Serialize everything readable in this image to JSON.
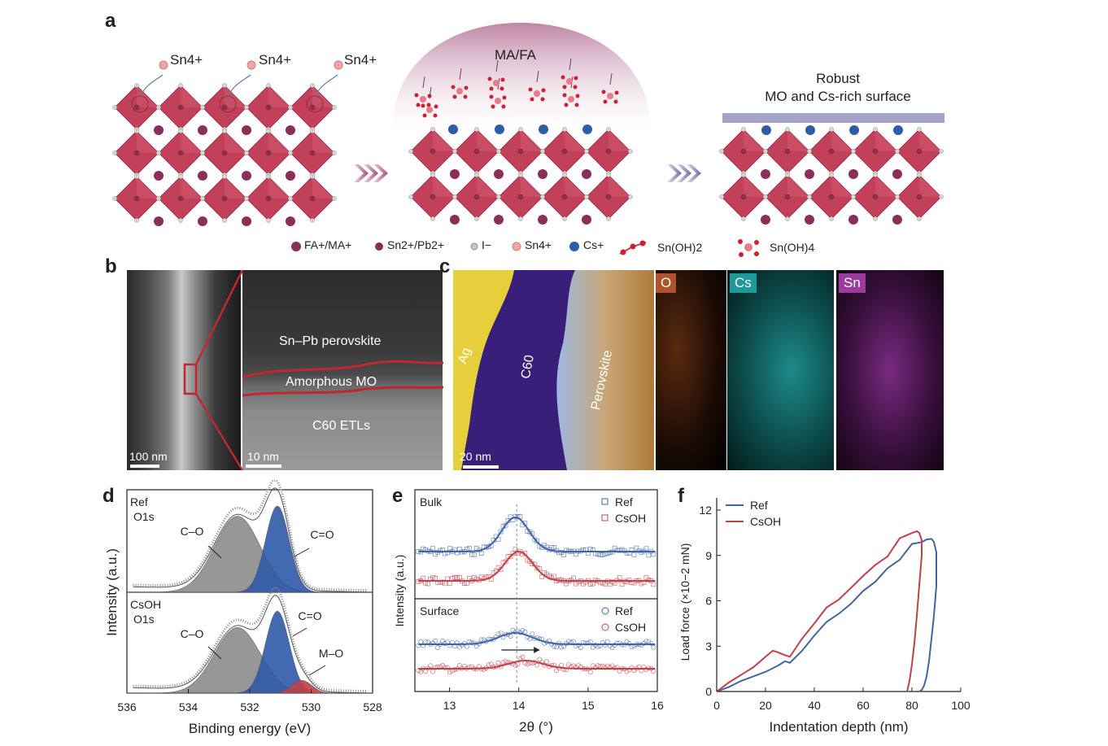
{
  "panels": {
    "a": "a",
    "b": "b",
    "c": "c",
    "d": "d",
    "e": "e",
    "f": "f"
  },
  "panel_a": {
    "sn_labels": [
      "Sn4+",
      "Sn4+",
      "Sn4+"
    ],
    "maf_label": "MA/FA",
    "robust_line1": "Robust",
    "robust_line2": "MO and Cs-rich surface",
    "legend": [
      "FA+/MA+",
      "Sn2+/Pb2+",
      "I−",
      "Sn4+",
      "Cs+",
      "Sn(OH)2",
      "Sn(OH)4"
    ],
    "colors": {
      "octahedron": "#c2405a",
      "fa": "#8b2f5a",
      "snpb": "#8e3040",
      "iodide": "#c8c8c8",
      "sn4": "#f2a6a6",
      "cs": "#2f5ea8",
      "bar": "#a5a2c8"
    }
  },
  "panel_b": {
    "left_scale": "100 nm",
    "right_scale": "10 nm",
    "layer_top": "Sn–Pb perovskite",
    "layer_mid": "Amorphous MO",
    "layer_bottom": "C60 ETLs"
  },
  "panel_c": {
    "scale": "20 nm",
    "labels": [
      "Ag",
      "C60",
      "Perovskite"
    ],
    "maps": [
      "O",
      "Cs",
      "Sn"
    ],
    "map_colors": [
      "#b0522a",
      "#1e9a9a",
      "#9c3aa0"
    ]
  },
  "chart_data": [
    {
      "type": "area",
      "panel": "d",
      "xlabel": "Binding energy (eV)",
      "ylabel": "Intensity (a.u.)",
      "xlim": [
        536,
        528
      ],
      "xticks": [
        536,
        534,
        532,
        530,
        528
      ],
      "subplots": [
        {
          "label_1": "Ref",
          "label_2": "O1s",
          "peaks": [
            {
              "name": "C–O",
              "center": 532.4,
              "height": 0.82,
              "color": "#8c8c8c"
            },
            {
              "name": "C=O",
              "center": 531.1,
              "height": 0.93,
              "color": "#2f5aa8"
            }
          ]
        },
        {
          "label_1": "CsOH",
          "label_2": "O1s",
          "peaks": [
            {
              "name": "C–O",
              "center": 532.4,
              "height": 0.72,
              "color": "#8c8c8c"
            },
            {
              "name": "C=O",
              "center": 531.1,
              "height": 0.9,
              "color": "#2f5aa8"
            },
            {
              "name": "M–O",
              "center": 530.3,
              "height": 0.14,
              "color": "#c24048"
            }
          ]
        }
      ]
    },
    {
      "type": "scatter",
      "panel": "e",
      "xlabel": "2θ (°)",
      "ylabel": "Intensity (a.u.)",
      "xlim": [
        12.5,
        16
      ],
      "xticks": [
        13,
        14,
        15,
        16
      ],
      "subplots": [
        {
          "title": "Bulk",
          "series": [
            {
              "name": "Ref",
              "center": 13.95,
              "color": "#3f64a8"
            },
            {
              "name": "CsOH",
              "center": 14.0,
              "color": "#c24048"
            }
          ]
        },
        {
          "title": "Surface",
          "series": [
            {
              "name": "Ref",
              "center": 13.95,
              "color": "#3f64a8"
            },
            {
              "name": "CsOH",
              "center": 14.1,
              "color": "#c24048"
            }
          ]
        }
      ]
    },
    {
      "type": "line",
      "panel": "f",
      "xlabel": "Indentation depth (nm)",
      "ylabel": "Load force (×10−2 mN)",
      "xlim": [
        0,
        100
      ],
      "ylim": [
        0,
        12
      ],
      "xticks": [
        0,
        20,
        40,
        60,
        80,
        100
      ],
      "yticks": [
        0,
        3,
        6,
        9,
        12
      ],
      "series": [
        {
          "name": "Ref",
          "color": "#3f64a8",
          "x": [
            0,
            5,
            10,
            15,
            20,
            25,
            28,
            30,
            35,
            40,
            45,
            50,
            55,
            60,
            65,
            70,
            75,
            80,
            84,
            86,
            88,
            89,
            90,
            90,
            89,
            88,
            87,
            86,
            85,
            84,
            83
          ],
          "y": [
            0,
            0.3,
            0.7,
            1.0,
            1.3,
            1.7,
            2.0,
            1.9,
            2.7,
            3.7,
            4.6,
            5.2,
            5.9,
            6.5,
            7.3,
            8.1,
            8.8,
            9.6,
            9.9,
            10.1,
            10.1,
            9.9,
            9.2,
            7.0,
            5.0,
            3.5,
            2.0,
            1.0,
            0.4,
            0.1,
            0
          ]
        },
        {
          "name": "CsOH",
          "color": "#c24048",
          "x": [
            0,
            5,
            10,
            15,
            20,
            23,
            25,
            28,
            30,
            35,
            40,
            45,
            50,
            55,
            60,
            65,
            70,
            75,
            80,
            82,
            83,
            84,
            84,
            83,
            82,
            81,
            80,
            79,
            78
          ],
          "y": [
            0,
            0.6,
            1.1,
            1.6,
            2.3,
            2.7,
            2.6,
            2.4,
            2.3,
            3.5,
            4.5,
            5.4,
            6.0,
            6.9,
            7.6,
            8.3,
            9.1,
            10.0,
            10.4,
            10.6,
            10.5,
            10.0,
            9.0,
            7.0,
            5.0,
            3.2,
            1.8,
            0.7,
            0
          ]
        }
      ]
    }
  ]
}
